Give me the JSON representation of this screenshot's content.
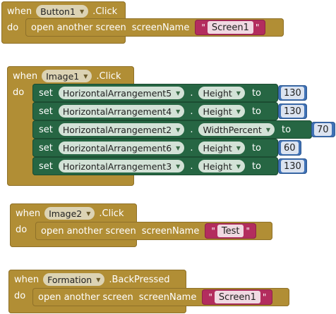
{
  "words": {
    "when": "when",
    "do": "do",
    "set": "set",
    "to": "to",
    "open": "open another screen",
    "screen_name": "screenName",
    "quote": "\"",
    "dot": "."
  },
  "events": [
    {
      "component": "Button1",
      "event": ".Click",
      "screen": "Screen1"
    },
    {
      "component": "Image1",
      "event": ".Click",
      "sets": [
        {
          "component": "HorizontalArrangement5",
          "property": "Height",
          "value": "130"
        },
        {
          "component": "HorizontalArrangement4",
          "property": "Height",
          "value": "130"
        },
        {
          "component": "HorizontalArrangement2",
          "property": "WidthPercent",
          "value": "70"
        },
        {
          "component": "HorizontalArrangement6",
          "property": "Height",
          "value": "60"
        },
        {
          "component": "HorizontalArrangement3",
          "property": "Height",
          "value": "130"
        }
      ]
    },
    {
      "component": "Image2",
      "event": ".Click",
      "screen": "Test"
    },
    {
      "component": "Formation",
      "event": ".BackPressed",
      "screen": "Screen1"
    }
  ],
  "colors": {
    "event": "#b18e35",
    "setter": "#266643",
    "number": "#3f71b5",
    "text": "#b32d5e"
  }
}
